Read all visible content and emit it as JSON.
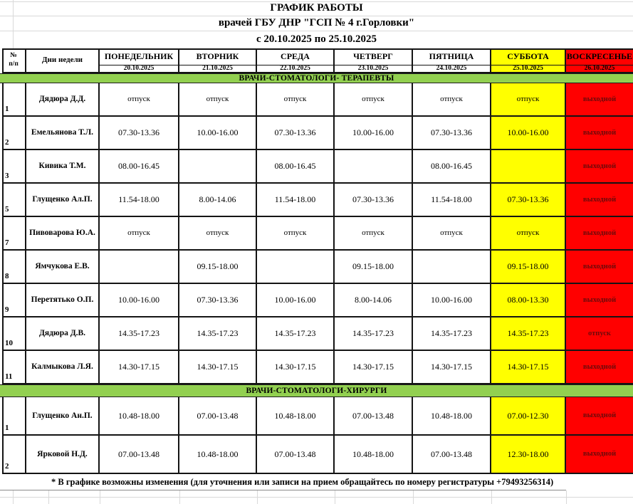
{
  "title": {
    "line1": "ГРАФИК РАБОТЫ",
    "line2": "врачей ГБУ ДНР \"ГСП № 4 г.Горловки\"",
    "line3": "с 20.10.2025 по 25.10.2025"
  },
  "table": {
    "corner": {
      "line1": "№",
      "line2": "п/п"
    },
    "days_label": "Дни недели",
    "day_columns": [
      {
        "key": "monday",
        "day": "ПОНЕДЕЛЬНИК",
        "date": "20.10.2025",
        "type": "weekday"
      },
      {
        "key": "tuesday",
        "day": "ВТОРНИК",
        "date": "21.10.2025",
        "type": "weekday"
      },
      {
        "key": "wednesday",
        "day": "СРЕДА",
        "date": "22.10.2025",
        "type": "weekday"
      },
      {
        "key": "thursday",
        "day": "ЧЕТВЕРГ",
        "date": "23.10.2025",
        "type": "weekday"
      },
      {
        "key": "friday",
        "day": "ПЯТНИЦА",
        "date": "24.10.2025",
        "type": "weekday"
      },
      {
        "key": "saturday",
        "day": "СУББОТА",
        "date": "25.10.2025",
        "type": "saturday"
      },
      {
        "key": "sunday",
        "day": "ВОСКРЕСЕНЬЕ",
        "date": "26.10.2025",
        "type": "sunday"
      }
    ],
    "sections": [
      {
        "label": "ВРАЧИ-СТОМАТОЛОГИ- ТЕРАПЕВТЫ",
        "rows": [
          {
            "num": "1",
            "name": "Дядюра Д.Д.",
            "cells": [
              "отпуск",
              "отпуск",
              "отпуск",
              "отпуск",
              "отпуск",
              "отпуск",
              "выходной"
            ]
          },
          {
            "num": "2",
            "name": "Емельянова Т.Л.",
            "cells": [
              "07.30-13.36",
              "10.00-16.00",
              "07.30-13.36",
              "10.00-16.00",
              "07.30-13.36",
              "10.00-16.00",
              "выходной"
            ]
          },
          {
            "num": "3",
            "name": "Кивика Т.М.",
            "cells": [
              "08.00-16.45",
              "",
              "08.00-16.45",
              "",
              "08.00-16.45",
              "",
              "выходной"
            ]
          },
          {
            "num": "5",
            "name": "Глущенко Ал.П.",
            "cells": [
              "11.54-18.00",
              "8.00-14.06",
              "11.54-18.00",
              "07.30-13.36",
              "11.54-18.00",
              "07.30-13.36",
              "выходной"
            ]
          },
          {
            "num": "7",
            "name": "Пивоварова Ю.А.",
            "cells": [
              "отпуск",
              "отпуск",
              "отпуск",
              "отпуск",
              "отпуск",
              "отпуск",
              "выходной"
            ]
          },
          {
            "num": "8",
            "name": "Ямчукова Е.В.",
            "cells": [
              "",
              "09.15-18.00",
              "",
              "09.15-18.00",
              "",
              "09.15-18.00",
              "выходной"
            ]
          },
          {
            "num": "9",
            "name": "Перетятько О.П.",
            "cells": [
              "10.00-16.00",
              "07.30-13.36",
              "10.00-16.00",
              "8.00-14.06",
              "10.00-16.00",
              "08.00-13.30",
              "выходной"
            ]
          },
          {
            "num": "10",
            "name": "Дядюра Д.В.",
            "cells": [
              "14.35-17.23",
              "14.35-17.23",
              "14.35-17.23",
              "14.35-17.23",
              "14.35-17.23",
              "14.35-17.23",
              "отпуск"
            ]
          },
          {
            "num": "11",
            "name": "Калмыкова Л.Я.",
            "cells": [
              "14.30-17.15",
              "14.30-17.15",
              "14.30-17.15",
              "14.30-17.15",
              "14.30-17.15",
              "14.30-17.15",
              "выходной"
            ]
          }
        ]
      },
      {
        "label": "ВРАЧИ-СТОМАТОЛОГИ-ХИРУРГИ",
        "rows": [
          {
            "num": "1",
            "name": "Глущенко Ан.П.",
            "cells": [
              "10.48-18.00",
              "07.00-13.48",
              "10.48-18.00",
              "07.00-13.48",
              "10.48-18.00",
              "07.00-12.30",
              "выходной"
            ]
          },
          {
            "num": "2",
            "name": "Ярковой Н.Д.",
            "cells": [
              "07.00-13.48",
              "10.48-18.00",
              "07.00-13.48",
              "10.48-18.00",
              "07.00-13.48",
              "12.30-18.00",
              "выходной"
            ]
          }
        ]
      }
    ],
    "footer_note": "* В графике возможны изменения (для уточнения или записи на прием обращайтесь по номеру регистратуры +79493256314)"
  },
  "colors": {
    "saturday_bg": "#FFFF00",
    "sunday_bg": "#FF0000",
    "section_bg": "#92D050",
    "sunday_text": "#6e0a0a",
    "border": "#141414",
    "faint_grid": "#d9d9d9"
  }
}
